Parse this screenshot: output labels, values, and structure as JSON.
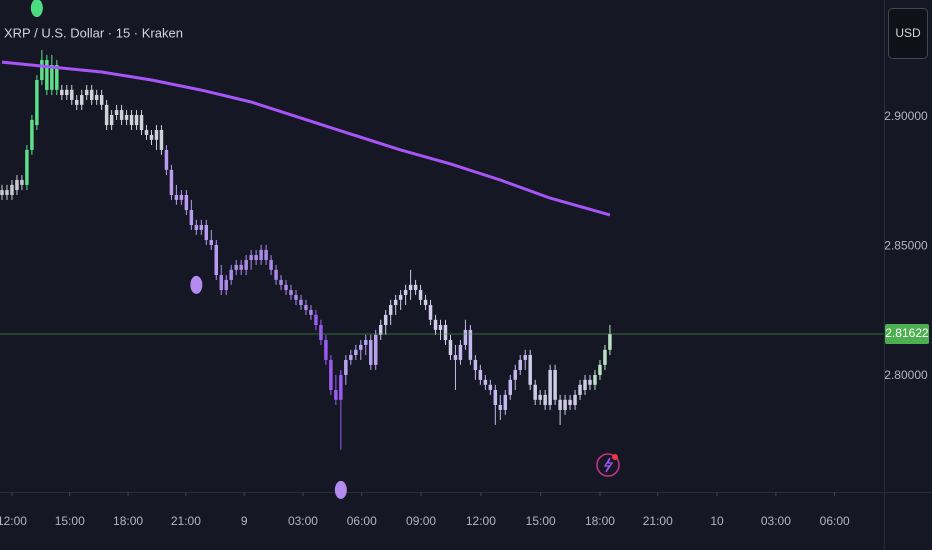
{
  "chart_data": {
    "type": "candlestick",
    "title": "XRP / U.S. Dollar · 15 · Kraken",
    "currency": "USD",
    "candles": [
      [
        2.8699,
        2.8738,
        2.868,
        2.8718
      ],
      [
        2.8718,
        2.8738,
        2.868,
        2.8699
      ],
      [
        2.8699,
        2.8757,
        2.868,
        2.8738
      ],
      [
        2.8718,
        2.8776,
        2.8699,
        2.8757
      ],
      [
        2.8757,
        2.8776,
        2.8718,
        2.8738
      ],
      [
        2.8738,
        2.8892,
        2.8718,
        2.8873
      ],
      [
        2.8873,
        2.9008,
        2.8854,
        2.8989
      ],
      [
        2.8969,
        2.9162,
        2.895,
        2.9143
      ],
      [
        2.9143,
        2.9259,
        2.9124,
        2.922
      ],
      [
        2.922,
        2.924,
        2.9085,
        2.9105
      ],
      [
        2.9105,
        2.924,
        2.9085,
        2.9201
      ],
      [
        2.9201,
        2.922,
        2.9085,
        2.9105
      ],
      [
        2.9105,
        2.9124,
        2.9066,
        2.9085
      ],
      [
        2.9085,
        2.9124,
        2.9066,
        2.9105
      ],
      [
        2.9105,
        2.9124,
        2.9047,
        2.9066
      ],
      [
        2.9066,
        2.9085,
        2.9027,
        2.9047
      ],
      [
        2.9047,
        2.9105,
        2.9027,
        2.9085
      ],
      [
        2.9085,
        2.9124,
        2.9066,
        2.9105
      ],
      [
        2.9105,
        2.9124,
        2.9047,
        2.9066
      ],
      [
        2.9066,
        2.9105,
        2.9047,
        2.9085
      ],
      [
        2.9085,
        2.9105,
        2.9027,
        2.9047
      ],
      [
        2.9047,
        2.9066,
        2.895,
        2.8969
      ],
      [
        2.8969,
        2.9027,
        2.895,
        2.9008
      ],
      [
        2.9008,
        2.9047,
        2.8989,
        2.9027
      ],
      [
        2.9027,
        2.9047,
        2.8969,
        2.8989
      ],
      [
        2.8989,
        2.9027,
        2.8969,
        2.9008
      ],
      [
        2.9008,
        2.9027,
        2.895,
        2.8969
      ],
      [
        2.8969,
        2.9027,
        2.895,
        2.9008
      ],
      [
        2.9008,
        2.9027,
        2.8931,
        2.895
      ],
      [
        2.895,
        2.8969,
        2.8912,
        2.8931
      ],
      [
        2.8931,
        2.895,
        2.8892,
        2.8912
      ],
      [
        2.8912,
        2.8969,
        2.8873,
        2.895
      ],
      [
        2.895,
        2.8969,
        2.8854,
        2.8873
      ],
      [
        2.8873,
        2.8892,
        2.8776,
        2.8796
      ],
      [
        2.8796,
        2.8815,
        2.868,
        2.8699
      ],
      [
        2.8699,
        2.8738,
        2.8661,
        2.868
      ],
      [
        2.868,
        2.8718,
        2.8661,
        2.8699
      ],
      [
        2.8699,
        2.8718,
        2.8622,
        2.8641
      ],
      [
        2.8641,
        2.868,
        2.8564,
        2.8583
      ],
      [
        2.8583,
        2.8603,
        2.8545,
        2.8564
      ],
      [
        2.8564,
        2.8603,
        2.8545,
        2.8583
      ],
      [
        2.8583,
        2.8603,
        2.8506,
        2.8525
      ],
      [
        2.8525,
        2.8564,
        2.8487,
        2.8506
      ],
      [
        2.8506,
        2.8525,
        2.8371,
        2.839
      ],
      [
        2.839,
        2.8429,
        2.8313,
        2.8332
      ],
      [
        2.8332,
        2.839,
        2.8313,
        2.8371
      ],
      [
        2.8371,
        2.8429,
        2.8352,
        2.841
      ],
      [
        2.841,
        2.8448,
        2.839,
        2.8429
      ],
      [
        2.8429,
        2.8448,
        2.839,
        2.841
      ],
      [
        2.841,
        2.8467,
        2.839,
        2.8448
      ],
      [
        2.8448,
        2.8487,
        2.841,
        2.8467
      ],
      [
        2.8467,
        2.8487,
        2.8429,
        2.8448
      ],
      [
        2.8448,
        2.8506,
        2.8429,
        2.8487
      ],
      [
        2.8487,
        2.8506,
        2.8429,
        2.8448
      ],
      [
        2.8448,
        2.8467,
        2.839,
        2.841
      ],
      [
        2.841,
        2.8429,
        2.8352,
        2.8371
      ],
      [
        2.8371,
        2.839,
        2.8332,
        2.8352
      ],
      [
        2.8352,
        2.8371,
        2.8313,
        2.8332
      ],
      [
        2.8332,
        2.8352,
        2.8294,
        2.8313
      ],
      [
        2.8313,
        2.8332,
        2.8274,
        2.8294
      ],
      [
        2.8294,
        2.8313,
        2.8255,
        2.8274
      ],
      [
        2.8274,
        2.8294,
        2.8236,
        2.8255
      ],
      [
        2.8255,
        2.8274,
        2.8217,
        2.8236
      ],
      [
        2.8236,
        2.8255,
        2.8178,
        2.8197
      ],
      [
        2.8197,
        2.8217,
        2.812,
        2.8139
      ],
      [
        2.8139,
        2.8159,
        2.8043,
        2.8062
      ],
      [
        2.8062,
        2.8081,
        2.7927,
        2.7946
      ],
      [
        2.7946,
        2.8004,
        2.7888,
        2.7908
      ],
      [
        2.7908,
        2.8023,
        2.7715,
        2.8004
      ],
      [
        2.8004,
        2.8081,
        2.7966,
        2.8062
      ],
      [
        2.8062,
        2.8101,
        2.8043,
        2.8081
      ],
      [
        2.8081,
        2.812,
        2.8062,
        2.8101
      ],
      [
        2.8101,
        2.8139,
        2.8062,
        2.812
      ],
      [
        2.812,
        2.8159,
        2.8081,
        2.8139
      ],
      [
        2.8139,
        2.8159,
        2.8023,
        2.8043
      ],
      [
        2.8043,
        2.8178,
        2.8023,
        2.8159
      ],
      [
        2.8159,
        2.8217,
        2.8139,
        2.8197
      ],
      [
        2.8197,
        2.8255,
        2.8159,
        2.8236
      ],
      [
        2.8236,
        2.8294,
        2.8197,
        2.8274
      ],
      [
        2.8274,
        2.8313,
        2.8236,
        2.8294
      ],
      [
        2.8294,
        2.8332,
        2.8255,
        2.8313
      ],
      [
        2.8313,
        2.8352,
        2.8274,
        2.8332
      ],
      [
        2.8332,
        2.841,
        2.8294,
        2.8352
      ],
      [
        2.8352,
        2.8371,
        2.8313,
        2.8332
      ],
      [
        2.8332,
        2.8352,
        2.8274,
        2.8294
      ],
      [
        2.8294,
        2.8313,
        2.8255,
        2.8274
      ],
      [
        2.8274,
        2.8294,
        2.8197,
        2.8217
      ],
      [
        2.8217,
        2.8236,
        2.8159,
        2.8178
      ],
      [
        2.8178,
        2.8217,
        2.8139,
        2.8197
      ],
      [
        2.8197,
        2.8217,
        2.812,
        2.8139
      ],
      [
        2.8139,
        2.8159,
        2.8062,
        2.8081
      ],
      [
        2.8081,
        2.812,
        2.7946,
        2.8062
      ],
      [
        2.8062,
        2.8139,
        2.8043,
        2.812
      ],
      [
        2.812,
        2.8217,
        2.8101,
        2.8178
      ],
      [
        2.8178,
        2.8197,
        2.8043,
        2.8062
      ],
      [
        2.8062,
        2.8081,
        2.7985,
        2.8023
      ],
      [
        2.8023,
        2.8043,
        2.7966,
        2.7985
      ],
      [
        2.7985,
        2.8004,
        2.7946,
        2.7966
      ],
      [
        2.7966,
        2.7985,
        2.7927,
        2.7946
      ],
      [
        2.7946,
        2.7966,
        2.7811,
        2.7888
      ],
      [
        2.7888,
        2.7927,
        2.783,
        2.7869
      ],
      [
        2.7869,
        2.7946,
        2.785,
        2.7927
      ],
      [
        2.7927,
        2.8004,
        2.7908,
        2.7985
      ],
      [
        2.7985,
        2.8043,
        2.7946,
        2.8023
      ],
      [
        2.8023,
        2.8081,
        2.8004,
        2.8062
      ],
      [
        2.8062,
        2.8101,
        2.8023,
        2.8081
      ],
      [
        2.8081,
        2.8101,
        2.7946,
        2.7966
      ],
      [
        2.7966,
        2.7985,
        2.7888,
        2.7908
      ],
      [
        2.7908,
        2.7946,
        2.7888,
        2.7927
      ],
      [
        2.7927,
        2.7946,
        2.7869,
        2.7888
      ],
      [
        2.7888,
        2.8043,
        2.7869,
        2.8023
      ],
      [
        2.8023,
        2.8043,
        2.7888,
        2.7908
      ],
      [
        2.7908,
        2.7927,
        2.7811,
        2.7869
      ],
      [
        2.7869,
        2.7927,
        2.785,
        2.7908
      ],
      [
        2.7908,
        2.7927,
        2.7869,
        2.7888
      ],
      [
        2.7888,
        2.7946,
        2.7869,
        2.7927
      ],
      [
        2.7927,
        2.7985,
        2.7908,
        2.7966
      ],
      [
        2.7946,
        2.8004,
        2.7927,
        2.7985
      ],
      [
        2.7985,
        2.8004,
        2.7946,
        2.7966
      ],
      [
        2.7966,
        2.8023,
        2.7946,
        2.8004
      ],
      [
        2.8004,
        2.8062,
        2.7985,
        2.8043
      ],
      [
        2.8043,
        2.812,
        2.8023,
        2.8101
      ],
      [
        2.8101,
        2.8197,
        2.8081,
        2.81622
      ]
    ],
    "colors": [
      "#c9c9d1",
      "#c9c9d1",
      "#c9c9d1",
      "#c9c9d1",
      "#c9c9d1",
      "#5ee08a",
      "#5ee08a",
      "#5ee08a",
      "#5ee08a",
      "#5ee08a",
      "#5ee08a",
      "#5ee08a",
      "#d1d1d9",
      "#d1d1d9",
      "#d1d1d9",
      "#d1d1d9",
      "#d1d1d9",
      "#d1d1d9",
      "#d1d1d9",
      "#d1d1d9",
      "#d1d1d9",
      "#d1d1d9",
      "#d1d1d9",
      "#d1d1d9",
      "#d1d1d9",
      "#d1d1d9",
      "#d1d1d9",
      "#d1d1d9",
      "#d1d1d9",
      "#d1d1d9",
      "#d1d1d9",
      "#d1d1d9",
      "#d1d1d9",
      "#b89cf0",
      "#b89cf0",
      "#b89cf0",
      "#b89cf0",
      "#b89cf0",
      "#b89cf0",
      "#b89cf0",
      "#b89cf0",
      "#b89cf0",
      "#b89cf0",
      "#b89cf0",
      "#a98ae8",
      "#a98ae8",
      "#a98ae8",
      "#a98ae8",
      "#a98ae8",
      "#a98ae8",
      "#a98ae8",
      "#a98ae8",
      "#a98ae8",
      "#a98ae8",
      "#a98ae8",
      "#a98ae8",
      "#a98ae8",
      "#a98ae8",
      "#a98ae8",
      "#a98ae8",
      "#a98ae8",
      "#a98ae8",
      "#a98ae8",
      "#9a5cf0",
      "#9a5cf0",
      "#9a5cf0",
      "#9a5cf0",
      "#9a5cf0",
      "#9a5cf0",
      "#b8a4ee",
      "#b8a4ee",
      "#b8a4ee",
      "#b8a4ee",
      "#b8a4ee",
      "#b8a4ee",
      "#b8a4ee",
      "#d0ccea",
      "#d0ccea",
      "#d0ccea",
      "#d0ccea",
      "#d0ccea",
      "#d0ccea",
      "#d0ccea",
      "#d0ccea",
      "#d0ccea",
      "#d0ccea",
      "#d0ccea",
      "#d0ccea",
      "#d0ccea",
      "#d0ccea",
      "#d0ccea",
      "#c4b8ee",
      "#c4b8ee",
      "#c4b8ee",
      "#c4b8ee",
      "#c4b8ee",
      "#c4b8ee",
      "#c4b8ee",
      "#c4b8ee",
      "#c4b8ee",
      "#c4b8ee",
      "#c4b8ee",
      "#c4b8ee",
      "#c4b8ee",
      "#c4b8ee",
      "#c4b8ee",
      "#cfcbe6",
      "#cfcbe6",
      "#cfcbe6",
      "#cfcbe6",
      "#cfcbe6",
      "#cfcbe6",
      "#cfcbe6",
      "#cfcbe6",
      "#cfcbe6",
      "#cfcbe6",
      "#cfcbe6",
      "#cfcbe6",
      "#cfcbe6",
      "#b9e2c5",
      "#b9e2c5",
      "#b9e2c5",
      "#b9e2c5"
    ],
    "ma": {
      "color": "#a855f7",
      "x": [
        0,
        20,
        30,
        40,
        50,
        60,
        70,
        80,
        90,
        100,
        110,
        122
      ],
      "values": [
        2.9212,
        2.9174,
        2.9143,
        2.9104,
        2.9058,
        2.8996,
        2.8934,
        2.8873,
        2.8819,
        2.8757,
        2.8687,
        2.8622
      ]
    },
    "signals": [
      {
        "x": 7,
        "y": 2.9421,
        "color": "#4ade80"
      },
      {
        "x": 39,
        "y": 2.8352,
        "color": "#b48cf0"
      },
      {
        "x": 68,
        "y": 2.756,
        "color": "#b48cf0"
      }
    ],
    "last_price": 2.81622,
    "last_price_color": "#4caf50",
    "xlim": [
      -0.4,
      177
    ],
    "ylim": [
      2.7552,
      2.9452
    ],
    "yticks": [
      {
        "value": 2.9,
        "label": "2.90000"
      },
      {
        "value": 2.85,
        "label": "2.85000"
      },
      {
        "value": 2.8,
        "label": "2.80000"
      }
    ],
    "xticks": [
      {
        "value": 2.0,
        "label": "12:00"
      },
      {
        "value": 13.6,
        "label": "15:00"
      },
      {
        "value": 25.3,
        "label": "18:00"
      },
      {
        "value": 36.9,
        "label": "21:00"
      },
      {
        "value": 48.6,
        "label": "9"
      },
      {
        "value": 60.4,
        "label": "03:00"
      },
      {
        "value": 72.2,
        "label": "06:00"
      },
      {
        "value": 84.1,
        "label": "09:00"
      },
      {
        "value": 96.1,
        "label": "12:00"
      },
      {
        "value": 108.1,
        "label": "15:00"
      },
      {
        "value": 120.0,
        "label": "18:00"
      },
      {
        "value": 131.6,
        "label": "21:00"
      },
      {
        "value": 143.5,
        "label": "10"
      },
      {
        "value": 155.3,
        "label": "03:00"
      },
      {
        "value": 167.1,
        "label": "06:00"
      }
    ]
  }
}
